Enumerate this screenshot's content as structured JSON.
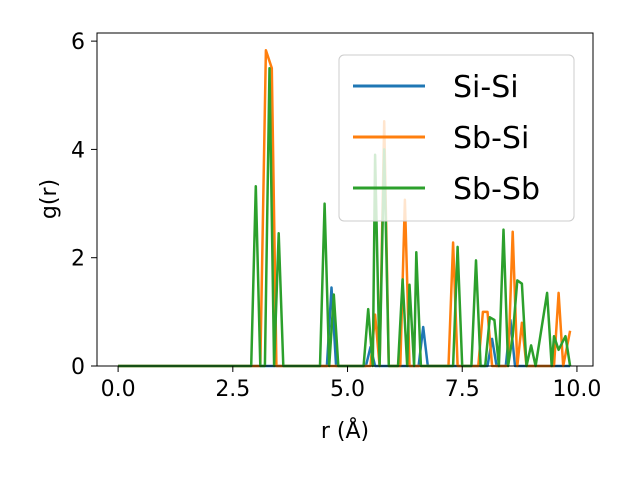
{
  "chart_data": {
    "type": "line",
    "xlabel": "r (Å)",
    "ylabel": "g(r)",
    "xlim": [
      -0.46,
      10.35
    ],
    "ylim": [
      0,
      6.15
    ],
    "xticks": [
      0.0,
      2.5,
      5.0,
      7.5,
      10.0
    ],
    "xtick_labels": [
      "0.0",
      "2.5",
      "5.0",
      "7.5",
      "10.0"
    ],
    "yticks": [
      0,
      2,
      4,
      6
    ],
    "ytick_labels": [
      "0",
      "2",
      "4",
      "6"
    ],
    "grid": false,
    "legend_position": "upper right",
    "series": [
      {
        "name": "Si-Si",
        "color": "#1f77b4",
        "points": [
          [
            0.0,
            0
          ],
          [
            4.55,
            0
          ],
          [
            4.65,
            1.45
          ],
          [
            4.75,
            0
          ],
          [
            5.4,
            0
          ],
          [
            5.5,
            0.35
          ],
          [
            5.6,
            0
          ],
          [
            6.55,
            0
          ],
          [
            6.65,
            0.72
          ],
          [
            6.75,
            0
          ],
          [
            8.05,
            0
          ],
          [
            8.15,
            0.5
          ],
          [
            8.25,
            0
          ],
          [
            8.45,
            0
          ],
          [
            8.55,
            0.85
          ],
          [
            8.65,
            0
          ],
          [
            9.85,
            0
          ]
        ]
      },
      {
        "name": "Sb-Si",
        "color": "#ff7f0e",
        "points": [
          [
            0.0,
            0
          ],
          [
            3.1,
            0
          ],
          [
            3.22,
            5.83
          ],
          [
            3.35,
            5.5
          ],
          [
            3.45,
            0
          ],
          [
            5.5,
            0
          ],
          [
            5.6,
            0.95
          ],
          [
            5.7,
            0
          ],
          [
            5.8,
            4.52
          ],
          [
            5.9,
            0
          ],
          [
            6.15,
            0
          ],
          [
            6.25,
            3.07
          ],
          [
            6.35,
            0
          ],
          [
            7.2,
            0
          ],
          [
            7.3,
            2.28
          ],
          [
            7.4,
            0
          ],
          [
            7.85,
            0
          ],
          [
            7.95,
            1.0
          ],
          [
            8.05,
            1.0
          ],
          [
            8.15,
            0
          ],
          [
            8.5,
            0
          ],
          [
            8.6,
            2.48
          ],
          [
            8.7,
            0
          ],
          [
            8.8,
            0.8
          ],
          [
            8.9,
            0
          ],
          [
            9.5,
            0
          ],
          [
            9.6,
            1.35
          ],
          [
            9.7,
            0
          ],
          [
            9.85,
            0.65
          ]
        ]
      },
      {
        "name": "Sb-Sb",
        "color": "#2ca02c",
        "points": [
          [
            0.0,
            0
          ],
          [
            2.9,
            0
          ],
          [
            3.0,
            3.32
          ],
          [
            3.1,
            0
          ],
          [
            3.2,
            0
          ],
          [
            3.3,
            5.5
          ],
          [
            3.4,
            0
          ],
          [
            3.5,
            2.45
          ],
          [
            3.6,
            0
          ],
          [
            4.4,
            0
          ],
          [
            4.5,
            3.0
          ],
          [
            4.6,
            0
          ],
          [
            4.7,
            1.32
          ],
          [
            4.8,
            0
          ],
          [
            5.35,
            0
          ],
          [
            5.45,
            1.05
          ],
          [
            5.55,
            0
          ],
          [
            5.6,
            3.9
          ],
          [
            5.7,
            0
          ],
          [
            5.8,
            4.0
          ],
          [
            5.9,
            0
          ],
          [
            6.1,
            0
          ],
          [
            6.2,
            1.6
          ],
          [
            6.3,
            0
          ],
          [
            6.35,
            1.5
          ],
          [
            6.45,
            0
          ],
          [
            6.5,
            2.1
          ],
          [
            6.6,
            0
          ],
          [
            7.3,
            0
          ],
          [
            7.4,
            2.2
          ],
          [
            7.5,
            0
          ],
          [
            7.7,
            0
          ],
          [
            7.8,
            1.95
          ],
          [
            7.9,
            0
          ],
          [
            8.0,
            0
          ],
          [
            8.1,
            0.9
          ],
          [
            8.2,
            0.85
          ],
          [
            8.3,
            0
          ],
          [
            8.4,
            2.52
          ],
          [
            8.5,
            0
          ],
          [
            8.6,
            0.55
          ],
          [
            8.7,
            1.58
          ],
          [
            8.8,
            1.52
          ],
          [
            8.9,
            0
          ],
          [
            9.0,
            0.38
          ],
          [
            9.1,
            0
          ],
          [
            9.35,
            1.35
          ],
          [
            9.45,
            0
          ],
          [
            9.5,
            0.55
          ],
          [
            9.6,
            0.3
          ],
          [
            9.75,
            0.55
          ],
          [
            9.85,
            0
          ]
        ]
      }
    ]
  }
}
